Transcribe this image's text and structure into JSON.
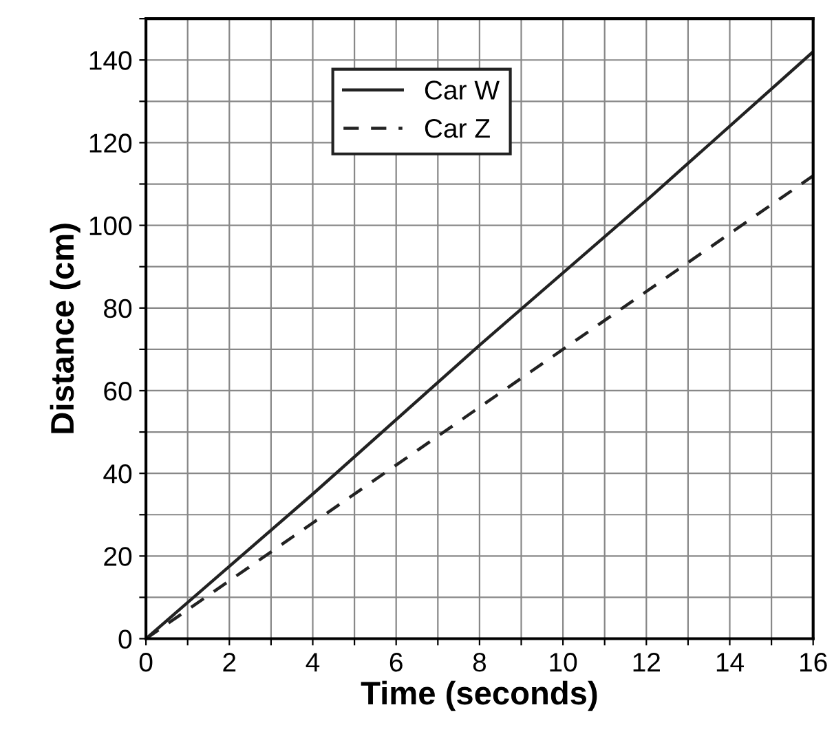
{
  "chart_data": {
    "type": "line",
    "xlabel": "Time (seconds)",
    "ylabel": "Distance (cm)",
    "series": [
      {
        "name": "Car W",
        "color": "#222222",
        "x": [
          0,
          4,
          8,
          12,
          16
        ],
        "values": [
          0,
          35,
          71,
          106,
          142
        ],
        "line_style": "solid"
      },
      {
        "name": "Car Z",
        "color": "#222222",
        "x": [
          0,
          4,
          8,
          12,
          16
        ],
        "values": [
          0,
          28,
          56,
          84,
          112
        ],
        "line_style": "dashed"
      }
    ],
    "xlim": [
      0,
      16
    ],
    "ylim": [
      0,
      150
    ],
    "xticks": [
      0,
      {
        "value": 1,
        "label": null
      },
      2,
      {
        "value": 3,
        "label": null
      },
      4,
      {
        "value": 5,
        "label": null
      },
      6,
      {
        "value": 7,
        "label": null
      },
      8,
      {
        "value": 9,
        "label": null
      },
      10,
      {
        "value": 11,
        "label": null
      },
      12,
      {
        "value": 13,
        "label": null
      },
      14,
      {
        "value": 15,
        "label": null
      },
      16
    ],
    "yticks": [
      0,
      {
        "value": 10,
        "label": null
      },
      20,
      {
        "value": 30,
        "label": null
      },
      40,
      {
        "value": 50,
        "label": null
      },
      60,
      {
        "value": 70,
        "label": null
      },
      80,
      {
        "value": 90,
        "label": null
      },
      100,
      {
        "value": 110,
        "label": null
      },
      120,
      {
        "value": 130,
        "label": null
      },
      140,
      {
        "value": 150,
        "label": null
      }
    ],
    "grid": true,
    "legend": "top left",
    "marker": "none"
  }
}
